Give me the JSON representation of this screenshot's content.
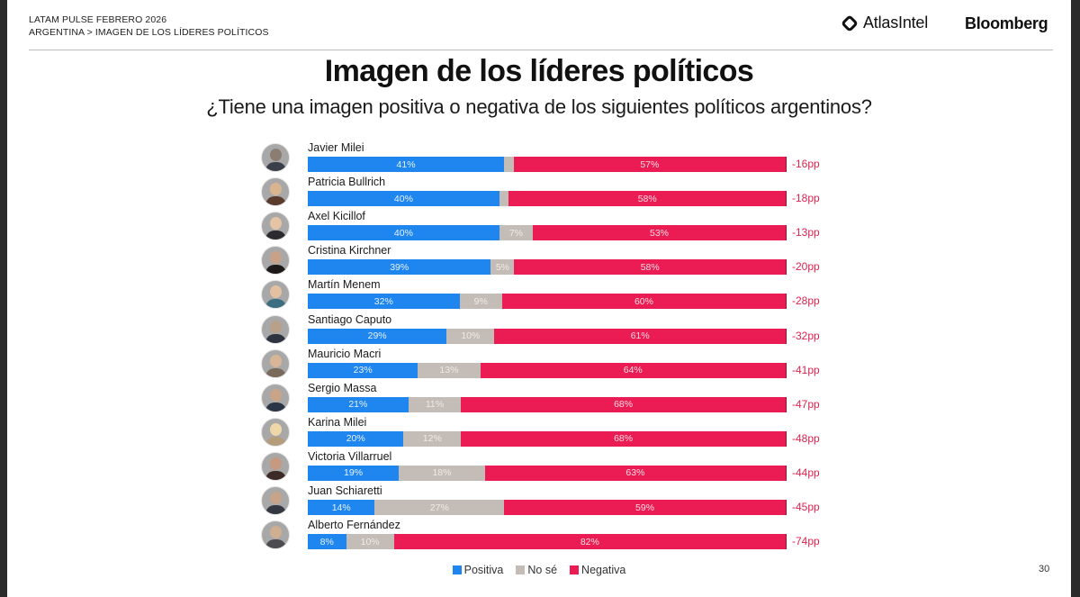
{
  "header": {
    "line1": "LATAM PULSE FEBRERO 2026",
    "line2": "ARGENTINA > IMAGEN DE LOS LÍDERES POLÍTICOS",
    "logos": {
      "atlas": "AtlasIntel",
      "bloomberg": "Bloomberg"
    }
  },
  "page_number": "30",
  "colors": {
    "positiva": "#1f86f0",
    "no_se": "#c4bcb7",
    "negativa": "#ea1c53",
    "net_text": "#e0234f"
  },
  "chart_data": {
    "type": "bar",
    "orientation": "horizontal-stacked-100",
    "title": "Imagen de los líderes políticos",
    "subtitle": "¿Tiene una imagen positiva o negativa de los siguientes políticos argentinos?",
    "unit": "%",
    "legend": {
      "position": "bottom-center",
      "entries": [
        "Positiva",
        "No sé",
        "Negativa"
      ]
    },
    "categories": [
      "Javier Milei",
      "Patricia Bullrich",
      "Axel Kicillof",
      "Cristina Kirchner",
      "Martín Menem",
      "Santiago Caputo",
      "Mauricio Macri",
      "Sergio Massa",
      "Karina Milei",
      "Victoria Villarruel",
      "Juan Schiaretti",
      "Alberto Fernández"
    ],
    "series": [
      {
        "name": "Positiva",
        "values": [
          41,
          40,
          40,
          39,
          32,
          29,
          23,
          21,
          20,
          19,
          14,
          8
        ]
      },
      {
        "name": "No sé",
        "values": [
          2,
          2,
          7,
          5,
          9,
          10,
          13,
          11,
          12,
          18,
          27,
          10
        ]
      },
      {
        "name": "Negativa",
        "values": [
          57,
          58,
          53,
          58,
          60,
          61,
          64,
          68,
          68,
          63,
          59,
          82
        ]
      }
    ],
    "no_se_label_visible": [
      false,
      false,
      true,
      true,
      true,
      true,
      true,
      true,
      true,
      true,
      true,
      true
    ],
    "net": [
      "-16pp",
      "-18pp",
      "-13pp",
      "-20pp",
      "-28pp",
      "-32pp",
      "-41pp",
      "-47pp",
      "-48pp",
      "-44pp",
      "-45pp",
      "-74pp"
    ],
    "avatar_tones": [
      [
        "#8b7d72",
        "#3a3f4a"
      ],
      [
        "#d9b48f",
        "#5a3b2e"
      ],
      [
        "#e6c3a5",
        "#2b2b30"
      ],
      [
        "#c8a288",
        "#1e1a1a"
      ],
      [
        "#e3c0a0",
        "#3a6e80"
      ],
      [
        "#b9a08a",
        "#2d3440"
      ],
      [
        "#d8b597",
        "#7a6a5c"
      ],
      [
        "#c9a488",
        "#2a3545"
      ],
      [
        "#f0d7a8",
        "#b59d7c"
      ],
      [
        "#c59a80",
        "#3c2a26"
      ],
      [
        "#c7a38a",
        "#333842"
      ],
      [
        "#cfae92",
        "#4b4b50"
      ]
    ]
  }
}
